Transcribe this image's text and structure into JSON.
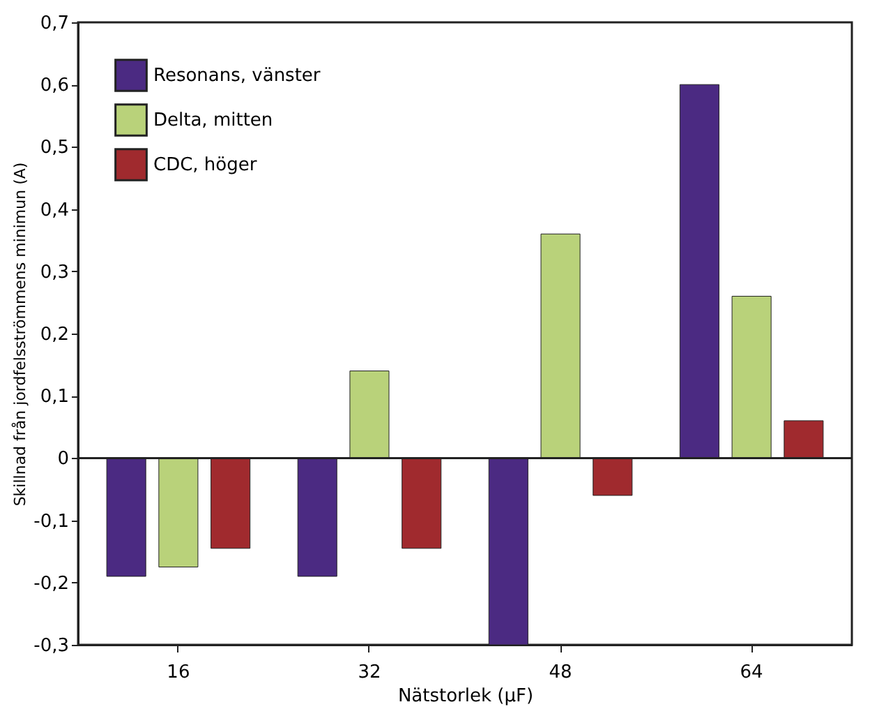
{
  "chart_data": {
    "type": "bar",
    "xlabel": "Nätstorlek (µF)",
    "ylabel": "Skillnad från jordfelsströmmens minimun (A)",
    "categories": [
      "16",
      "32",
      "48",
      "64"
    ],
    "series": [
      {
        "name": "Resonans, vänster",
        "color": "#4b2a82",
        "values": [
          -0.19,
          -0.19,
          -0.3,
          0.6
        ]
      },
      {
        "name": "Delta, mitten",
        "color": "#b9d27a",
        "values": [
          -0.175,
          0.14,
          0.36,
          0.26
        ]
      },
      {
        "name": "CDC, höger",
        "color": "#a02a2e",
        "values": [
          -0.145,
          -0.145,
          -0.06,
          0.06
        ]
      }
    ],
    "ylim": [
      -0.3,
      0.7
    ],
    "yticks": [
      {
        "value": -0.3,
        "label": "-0,3"
      },
      {
        "value": -0.2,
        "label": "-0,2"
      },
      {
        "value": -0.1,
        "label": "-0,1"
      },
      0,
      {
        "value": 0.1,
        "label": "0,1"
      },
      {
        "value": 0.2,
        "label": "0,2"
      },
      {
        "value": 0.3,
        "label": "0,3"
      },
      {
        "value": 0.4,
        "label": "0,4"
      },
      {
        "value": 0.5,
        "label": "0,5"
      },
      {
        "value": 0.6,
        "label": "0,6"
      },
      {
        "value": 0.7,
        "label": "0,7"
      }
    ],
    "ref_lines": [
      {
        "axis": "y",
        "value": 0,
        "color": "#222222"
      }
    ],
    "grid": false,
    "legend": "top left"
  }
}
